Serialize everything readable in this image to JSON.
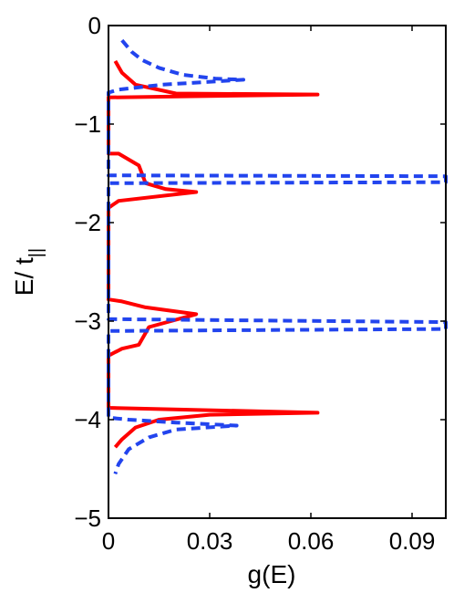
{
  "chart_data": {
    "type": "line",
    "xlabel": "g(E)",
    "ylabel": {
      "main": "E/ t",
      "subscript": "||"
    },
    "xlim": [
      0,
      0.1
    ],
    "ylim": [
      -5,
      0
    ],
    "x_ticks": [
      0,
      0.03,
      0.06,
      0.09
    ],
    "x_tick_labels": [
      "0",
      "0.03",
      "0.06",
      "0.09"
    ],
    "y_ticks": [
      0,
      -1,
      -2,
      -3,
      -4,
      -5
    ],
    "y_tick_labels": [
      "0",
      "−1",
      "−2",
      "−3",
      "−4",
      "−5"
    ],
    "grid": false,
    "legend": "none",
    "series": [
      {
        "color": "#ff0000",
        "style": "solid",
        "points": [
          [
            0.002,
            -0.36
          ],
          [
            0.004,
            -0.48
          ],
          [
            0.008,
            -0.6
          ],
          [
            0.02,
            -0.69
          ],
          [
            0.062,
            -0.7
          ],
          [
            0.0,
            -0.73
          ],
          [
            0.0,
            -1.3
          ],
          [
            0.003,
            -1.3
          ],
          [
            0.009,
            -1.42
          ],
          [
            0.011,
            -1.6
          ],
          [
            0.017,
            -1.66
          ],
          [
            0.026,
            -1.69
          ],
          [
            0.003,
            -1.78
          ],
          [
            0.0,
            -1.85
          ],
          [
            0.0,
            -2.78
          ],
          [
            0.004,
            -2.8
          ],
          [
            0.011,
            -2.86
          ],
          [
            0.026,
            -2.93
          ],
          [
            0.012,
            -3.06
          ],
          [
            0.009,
            -3.24
          ],
          [
            0.004,
            -3.28
          ],
          [
            0.0,
            -3.35
          ],
          [
            0.0,
            -3.88
          ],
          [
            0.062,
            -3.93
          ],
          [
            0.03,
            -3.95
          ],
          [
            0.015,
            -4.0
          ],
          [
            0.008,
            -4.08
          ],
          [
            0.004,
            -4.2
          ],
          [
            0.002,
            -4.28
          ]
        ]
      },
      {
        "color": "#2244ee",
        "style": "dashed",
        "points": [
          [
            0.004,
            -0.15
          ],
          [
            0.007,
            -0.27
          ],
          [
            0.01,
            -0.35
          ],
          [
            0.015,
            -0.43
          ],
          [
            0.022,
            -0.5
          ],
          [
            0.032,
            -0.54
          ],
          [
            0.04,
            -0.55
          ],
          [
            0.016,
            -0.6
          ],
          [
            0.003,
            -0.65
          ],
          [
            0.0,
            -0.68
          ],
          [
            0.0,
            -1.52
          ],
          [
            0.1,
            -1.53
          ],
          [
            0.1,
            -1.56
          ],
          [
            0.1,
            -1.59
          ],
          [
            0.0,
            -1.6
          ],
          [
            0.0,
            -2.98
          ],
          [
            0.1,
            -3.01
          ],
          [
            0.1,
            -3.05
          ],
          [
            0.1,
            -3.08
          ],
          [
            0.0,
            -3.1
          ],
          [
            0.0,
            -3.98
          ],
          [
            0.006,
            -4.0
          ],
          [
            0.02,
            -4.03
          ],
          [
            0.038,
            -4.06
          ],
          [
            0.02,
            -4.1
          ],
          [
            0.012,
            -4.18
          ],
          [
            0.006,
            -4.3
          ],
          [
            0.003,
            -4.45
          ],
          [
            0.002,
            -4.55
          ]
        ]
      }
    ]
  }
}
